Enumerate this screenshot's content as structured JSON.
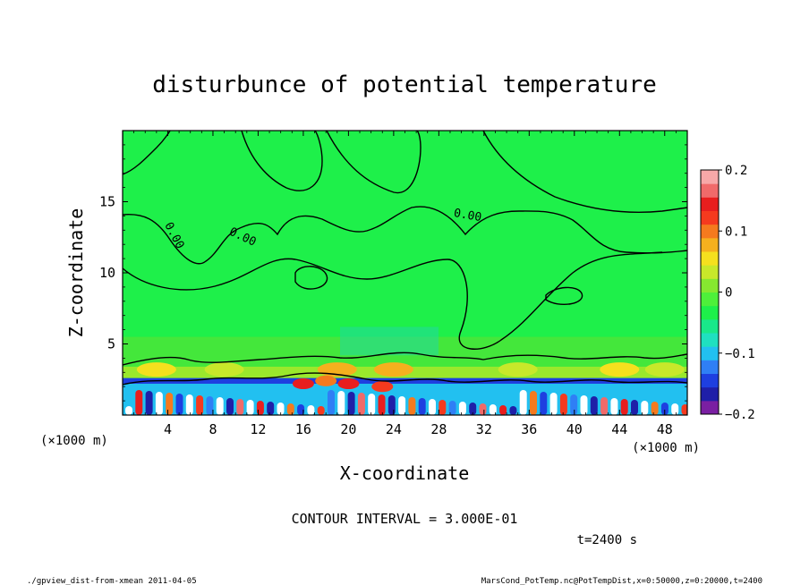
{
  "chart_data": {
    "type": "heatmap",
    "title": "disturbunce of potential temperature",
    "xlabel": "X-coordinate",
    "ylabel": "Z-coordinate",
    "x_unit_left": "(×1000 m)",
    "x_unit_right": "(×1000 m)",
    "xlim": [
      0,
      50
    ],
    "ylim": [
      0,
      20
    ],
    "x_ticks": [
      4,
      8,
      12,
      16,
      20,
      24,
      28,
      32,
      36,
      40,
      44,
      48
    ],
    "y_ticks": [
      5,
      10,
      15
    ],
    "colorbar": {
      "range": [
        -0.2,
        0.2
      ],
      "tick_values": [
        0.2,
        0.1,
        0,
        -0.1,
        -0.2
      ],
      "tick_labels": [
        "0.2",
        "0.1",
        "0",
        "−0.1",
        "−0.2"
      ],
      "colors": [
        "#7a1fa2",
        "#1f1fa8",
        "#1e3fe0",
        "#2f7ff5",
        "#22c0f0",
        "#1fe0c0",
        "#19e88a",
        "#1ef04a",
        "#4ef03a",
        "#86e830",
        "#c8e82a",
        "#f5e01e",
        "#f5b01e",
        "#f57a1e",
        "#f53a1e",
        "#e81e1e",
        "#f06a6a",
        "#f7a8a8"
      ]
    },
    "contour_labels": [
      {
        "text": "0.00",
        "x": 10.5,
        "z": 12.3,
        "angle": 25
      },
      {
        "text": "0.00",
        "x": 4.3,
        "z": 12.5,
        "angle": 62
      },
      {
        "text": "0.00",
        "x": 30.5,
        "z": 13.8,
        "angle": 10
      }
    ],
    "contour_interval": "CONTOUR INTERVAL = 3.000E-01",
    "time": "t=2400 s"
  },
  "footer": {
    "left": "./gpview_dist-from-xmean  2011-04-05",
    "right": "MarsCond_PotTemp.nc@PotTempDist,x=0:50000,z=0:20000,t=2400"
  }
}
